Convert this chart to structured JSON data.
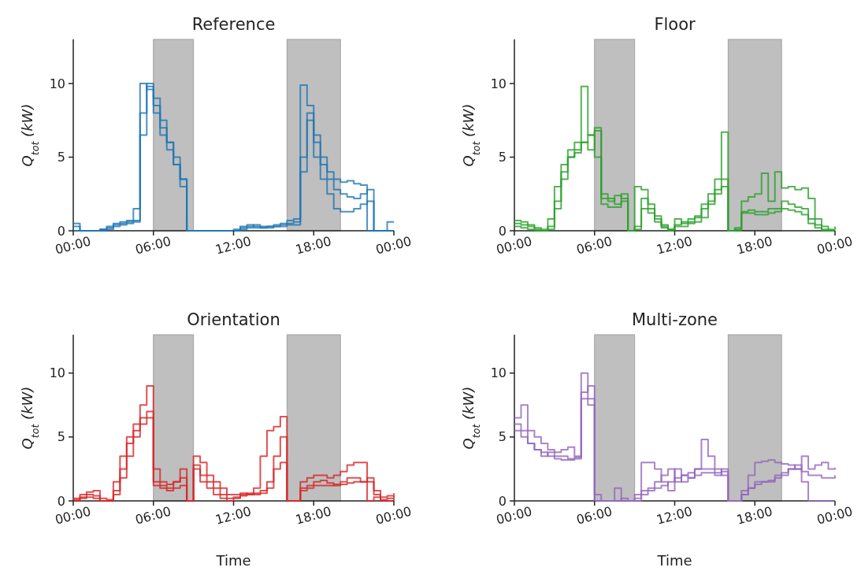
{
  "chart_data": [
    {
      "type": "step",
      "title": "Reference",
      "ylabel": "Q$_{tot}$ (kW)",
      "xlim": [
        0,
        24
      ],
      "ylim": [
        0,
        13
      ],
      "yticks": [
        0,
        5,
        10
      ],
      "xticks": [
        {
          "value": 0,
          "label": "00:00"
        },
        {
          "value": 6,
          "label": "06:00"
        },
        {
          "value": 12,
          "label": "12:00"
        },
        {
          "value": 18,
          "label": "18:00"
        },
        {
          "value": 24,
          "label": "00:00"
        }
      ],
      "x": [
        0,
        0.5,
        1,
        1.5,
        2,
        2.5,
        3,
        3.5,
        4,
        4.5,
        5,
        5.5,
        6,
        6.5,
        7,
        7.5,
        8,
        8.5,
        9,
        9.5,
        10,
        10.5,
        11,
        11.5,
        12,
        12.5,
        13,
        13.5,
        14,
        14.5,
        15,
        15.5,
        16,
        16.5,
        17,
        17.5,
        18,
        18.5,
        19,
        19.5,
        20,
        20.5,
        21,
        21.5,
        22,
        22.5,
        23,
        23.5,
        24
      ],
      "bands": [
        {
          "axis": "x",
          "from": 6,
          "to": 9,
          "color": "#bfbfbf"
        },
        {
          "axis": "x",
          "from": 16,
          "to": 20,
          "color": "#bfbfbf"
        }
      ],
      "series": [
        {
          "color": "#1f77b4",
          "values": [
            0.5,
            0,
            0,
            0,
            0.1,
            0.3,
            0.5,
            0.6,
            0.7,
            1.5,
            10,
            9.6,
            8,
            6.5,
            5.5,
            4.5,
            3.5,
            0,
            0,
            0,
            0,
            0,
            0,
            0,
            0.1,
            0.3,
            0.4,
            0.3,
            0.2,
            0.3,
            0.4,
            0.5,
            0.7,
            0.8,
            9.9,
            8.5,
            6.5,
            5,
            4,
            3.5,
            3.3,
            3.4,
            3.2,
            3.1,
            0,
            0,
            0,
            0.6,
            0.6
          ]
        },
        {
          "color": "#1f77b4",
          "values": [
            0.3,
            0,
            0,
            0,
            0,
            0.2,
            0.4,
            0.5,
            0.6,
            0.7,
            8,
            10,
            9,
            7,
            6,
            5,
            3,
            0,
            0,
            0,
            0,
            0,
            0,
            0,
            0,
            0.2,
            0.3,
            0.4,
            0.3,
            0.3,
            0.3,
            0.4,
            0.5,
            0.6,
            5,
            7.5,
            5,
            3.5,
            2.5,
            1.5,
            1.3,
            1.3,
            1.5,
            1.8,
            2,
            0,
            0,
            0,
            0
          ]
        },
        {
          "color": "#1f77b4",
          "values": [
            0,
            0,
            0,
            0,
            0.1,
            0.1,
            0.3,
            0.4,
            0.5,
            0.6,
            6.5,
            9.8,
            8.5,
            7.5,
            6,
            4.5,
            3.5,
            0,
            0,
            0,
            0,
            0,
            0,
            0,
            0,
            0.1,
            0.2,
            0.2,
            0.2,
            0.2,
            0.3,
            0.3,
            0.4,
            0.4,
            4,
            8,
            6,
            4.5,
            3.5,
            2.8,
            2.5,
            2.3,
            2.2,
            2.5,
            2.8,
            0,
            0,
            0,
            0
          ]
        }
      ]
    },
    {
      "type": "step",
      "title": "Floor",
      "ylabel": "Q$_{tot}$ (kW)",
      "xlim": [
        0,
        24
      ],
      "ylim": [
        0,
        13
      ],
      "yticks": [
        0,
        5,
        10
      ],
      "xticks": [
        {
          "value": 0,
          "label": "00:00"
        },
        {
          "value": 6,
          "label": "06:00"
        },
        {
          "value": 12,
          "label": "12:00"
        },
        {
          "value": 18,
          "label": "18:00"
        },
        {
          "value": 24,
          "label": "00:00"
        }
      ],
      "x": [
        0,
        0.5,
        1,
        1.5,
        2,
        2.5,
        3,
        3.5,
        4,
        4.5,
        5,
        5.5,
        6,
        6.5,
        7,
        7.5,
        8,
        8.5,
        9,
        9.5,
        10,
        10.5,
        11,
        11.5,
        12,
        12.5,
        13,
        13.5,
        14,
        14.5,
        15,
        15.5,
        16,
        16.5,
        17,
        17.5,
        18,
        18.5,
        19,
        19.5,
        20,
        20.5,
        21,
        21.5,
        22,
        22.5,
        23,
        23.5,
        24
      ],
      "bands": [
        {
          "axis": "x",
          "from": 6,
          "to": 9,
          "color": "#bfbfbf"
        },
        {
          "axis": "x",
          "from": 16,
          "to": 20,
          "color": "#bfbfbf"
        }
      ],
      "series": [
        {
          "color": "#2ca02c",
          "values": [
            0.7,
            0.6,
            0.4,
            0.2,
            0.1,
            0.8,
            3,
            4.5,
            5.5,
            6,
            9.8,
            6.5,
            7,
            2.5,
            2.2,
            1.8,
            2.5,
            0,
            3,
            2.8,
            1.8,
            1,
            0.4,
            0.1,
            0.8,
            0.5,
            0.8,
            1,
            1.8,
            2.5,
            3.5,
            6.7,
            0,
            0,
            2,
            2.3,
            2.5,
            3.9,
            2,
            4,
            2.9,
            3,
            2.8,
            2.9,
            2.2,
            0.8,
            0.3,
            0.1,
            0.3
          ]
        },
        {
          "color": "#2ca02c",
          "values": [
            0.5,
            0.4,
            0.3,
            0.1,
            0,
            0.3,
            2,
            4,
            5,
            5.3,
            6,
            5.5,
            6.8,
            1.8,
            1.6,
            1.6,
            2,
            0,
            0.1,
            2.2,
            1.5,
            0.8,
            0.3,
            0.1,
            0.4,
            0.6,
            0.6,
            0.9,
            1.5,
            2,
            2.8,
            3.5,
            0,
            0.1,
            1.3,
            1.4,
            1.3,
            1.3,
            1.5,
            1.5,
            2,
            1.8,
            1.6,
            1.5,
            0.8,
            0.4,
            0.1,
            0,
            0
          ]
        },
        {
          "color": "#2ca02c",
          "values": [
            0.3,
            0.2,
            0.1,
            0,
            0,
            0.1,
            1.5,
            3.5,
            5,
            5.5,
            6,
            6.5,
            5,
            2.2,
            2,
            2.4,
            2.2,
            0,
            0.3,
            1.5,
            1.2,
            0.6,
            0.2,
            0,
            0.3,
            0.3,
            0.5,
            0.6,
            0.9,
            1.8,
            2.5,
            3,
            0,
            0.2,
            1.2,
            1.2,
            1.1,
            1.1,
            1.2,
            1.3,
            1.5,
            1.4,
            1.3,
            1.1,
            0.5,
            0.2,
            0,
            0,
            0
          ]
        }
      ]
    },
    {
      "type": "step",
      "title": "Orientation",
      "xlabel": "Time",
      "ylabel": "Q$_{tot}$ (kW)",
      "xlim": [
        0,
        24
      ],
      "ylim": [
        0,
        13
      ],
      "yticks": [
        0,
        5,
        10
      ],
      "xticks": [
        {
          "value": 0,
          "label": "00:00"
        },
        {
          "value": 6,
          "label": "06:00"
        },
        {
          "value": 12,
          "label": "12:00"
        },
        {
          "value": 18,
          "label": "18:00"
        },
        {
          "value": 24,
          "label": "00:00"
        }
      ],
      "x": [
        0,
        0.5,
        1,
        1.5,
        2,
        2.5,
        3,
        3.5,
        4,
        4.5,
        5,
        5.5,
        6,
        6.5,
        7,
        7.5,
        8,
        8.5,
        9,
        9.5,
        10,
        10.5,
        11,
        11.5,
        12,
        12.5,
        13,
        13.5,
        14,
        14.5,
        15,
        15.5,
        16,
        16.5,
        17,
        17.5,
        18,
        18.5,
        19,
        19.5,
        20,
        20.5,
        21,
        21.5,
        22,
        22.5,
        23,
        23.5,
        24
      ],
      "bands": [
        {
          "axis": "x",
          "from": 6,
          "to": 9,
          "color": "#bfbfbf"
        },
        {
          "axis": "x",
          "from": 16,
          "to": 20,
          "color": "#bfbfbf"
        }
      ],
      "series": [
        {
          "color": "#d62728",
          "values": [
            0.2,
            0.5,
            0.7,
            0.8,
            0.2,
            0.1,
            1.5,
            3.5,
            5,
            6,
            7.5,
            9,
            2.5,
            1.5,
            1.3,
            1.5,
            2.5,
            0,
            3.5,
            3,
            2,
            1.5,
            1,
            0.5,
            0.5,
            0.6,
            0.5,
            1,
            3.5,
            5.5,
            5.8,
            6.6,
            0,
            0,
            1.5,
            1.8,
            2,
            2,
            1.8,
            2,
            2.3,
            2.8,
            3,
            3,
            1.5,
            0.8,
            0.3,
            0.4,
            0.6
          ]
        },
        {
          "color": "#d62728",
          "values": [
            0.1,
            0.3,
            0.5,
            0.4,
            0,
            0,
            0.8,
            2.5,
            4.5,
            5.5,
            6.5,
            7,
            1.5,
            1.2,
            1,
            1.5,
            1.8,
            0,
            2.8,
            2,
            1.5,
            1,
            0.5,
            0.2,
            0.3,
            0.5,
            0.6,
            0.6,
            0.8,
            1.5,
            3.5,
            5,
            0,
            0,
            1,
            1.2,
            1.5,
            1.6,
            1.4,
            1.2,
            1.5,
            1.8,
            1.8,
            1.5,
            1.8,
            0.5,
            0.1,
            0.2,
            0.4
          ]
        },
        {
          "color": "#d62728",
          "values": [
            0,
            0.2,
            0.3,
            0.2,
            0,
            0,
            0.5,
            1.8,
            3.5,
            5,
            6,
            6.5,
            1.2,
            1,
            0.8,
            1,
            1.2,
            0,
            2.5,
            1.5,
            1,
            0.5,
            0.2,
            0,
            0.2,
            0.4,
            0.5,
            0.5,
            0.6,
            1,
            2.5,
            3,
            0,
            0,
            0.8,
            1,
            1.2,
            1.2,
            1.2,
            1.3,
            1.3,
            1.4,
            1.5,
            1.5,
            0,
            0.3,
            0,
            0,
            0.2
          ]
        }
      ]
    },
    {
      "type": "step",
      "title": "Multi-zone",
      "xlabel": "Time",
      "ylabel": "Q$_{tot}$ (kW)",
      "xlim": [
        0,
        24
      ],
      "ylim": [
        0,
        13
      ],
      "yticks": [
        0,
        5,
        10
      ],
      "xticks": [
        {
          "value": 0,
          "label": "00:00"
        },
        {
          "value": 6,
          "label": "06:00"
        },
        {
          "value": 12,
          "label": "12:00"
        },
        {
          "value": 18,
          "label": "18:00"
        },
        {
          "value": 24,
          "label": "00:00"
        }
      ],
      "x": [
        0,
        0.5,
        1,
        1.5,
        2,
        2.5,
        3,
        3.5,
        4,
        4.5,
        5,
        5.5,
        6,
        6.5,
        7,
        7.5,
        8,
        8.5,
        9,
        9.5,
        10,
        10.5,
        11,
        11.5,
        12,
        12.5,
        13,
        13.5,
        14,
        14.5,
        15,
        15.5,
        16,
        16.5,
        17,
        17.5,
        18,
        18.5,
        19,
        19.5,
        20,
        20.5,
        21,
        21.5,
        22,
        22.5,
        23,
        23.5,
        24
      ],
      "bands": [
        {
          "axis": "x",
          "from": 6,
          "to": 9,
          "color": "#bfbfbf"
        },
        {
          "axis": "x",
          "from": 16,
          "to": 20,
          "color": "#bfbfbf"
        }
      ],
      "series": [
        {
          "color": "#9467bd",
          "values": [
            6.5,
            7.5,
            5.5,
            5,
            4.5,
            4,
            3.8,
            4,
            4.2,
            3.5,
            8,
            7.5,
            0.5,
            0,
            0,
            1,
            0,
            0,
            0,
            3,
            3,
            2.5,
            1.5,
            0.8,
            2.5,
            1.5,
            1.8,
            2.5,
            4.8,
            3.5,
            2.5,
            2,
            0,
            0,
            0.5,
            1,
            1.3,
            1.5,
            1.5,
            1.8,
            2.2,
            2.5,
            2.8,
            1.5,
            0,
            0,
            0,
            0,
            0
          ]
        },
        {
          "color": "#9467bd",
          "values": [
            6,
            5.5,
            4.5,
            4,
            3.8,
            3.5,
            3.3,
            3.2,
            3.2,
            3.3,
            10,
            8,
            0,
            0,
            0,
            0,
            0.2,
            0,
            0.5,
            0.8,
            1,
            1.5,
            2,
            2.5,
            1.5,
            2,
            1.8,
            2.5,
            2.5,
            2.5,
            2,
            2.5,
            0,
            0,
            0.8,
            2,
            3,
            3.1,
            3.2,
            3,
            2.9,
            2.8,
            2.5,
            2.3,
            2,
            2,
            1.8,
            1.8,
            2
          ]
        },
        {
          "color": "#9467bd",
          "values": [
            5.5,
            5,
            4.5,
            4,
            3.5,
            3.8,
            3.5,
            3.5,
            3.3,
            3.4,
            8.5,
            9,
            0,
            0,
            0,
            0,
            0,
            0,
            0.2,
            0.5,
            0.8,
            1,
            1.2,
            1.5,
            1.8,
            2,
            2.2,
            2,
            2.2,
            2.2,
            2.2,
            2.3,
            0,
            0,
            0.5,
            1,
            1.5,
            1.5,
            1.6,
            2,
            2,
            2.5,
            2.5,
            3.5,
            2.5,
            2.8,
            3,
            2.5,
            2.6
          ]
        }
      ]
    }
  ]
}
